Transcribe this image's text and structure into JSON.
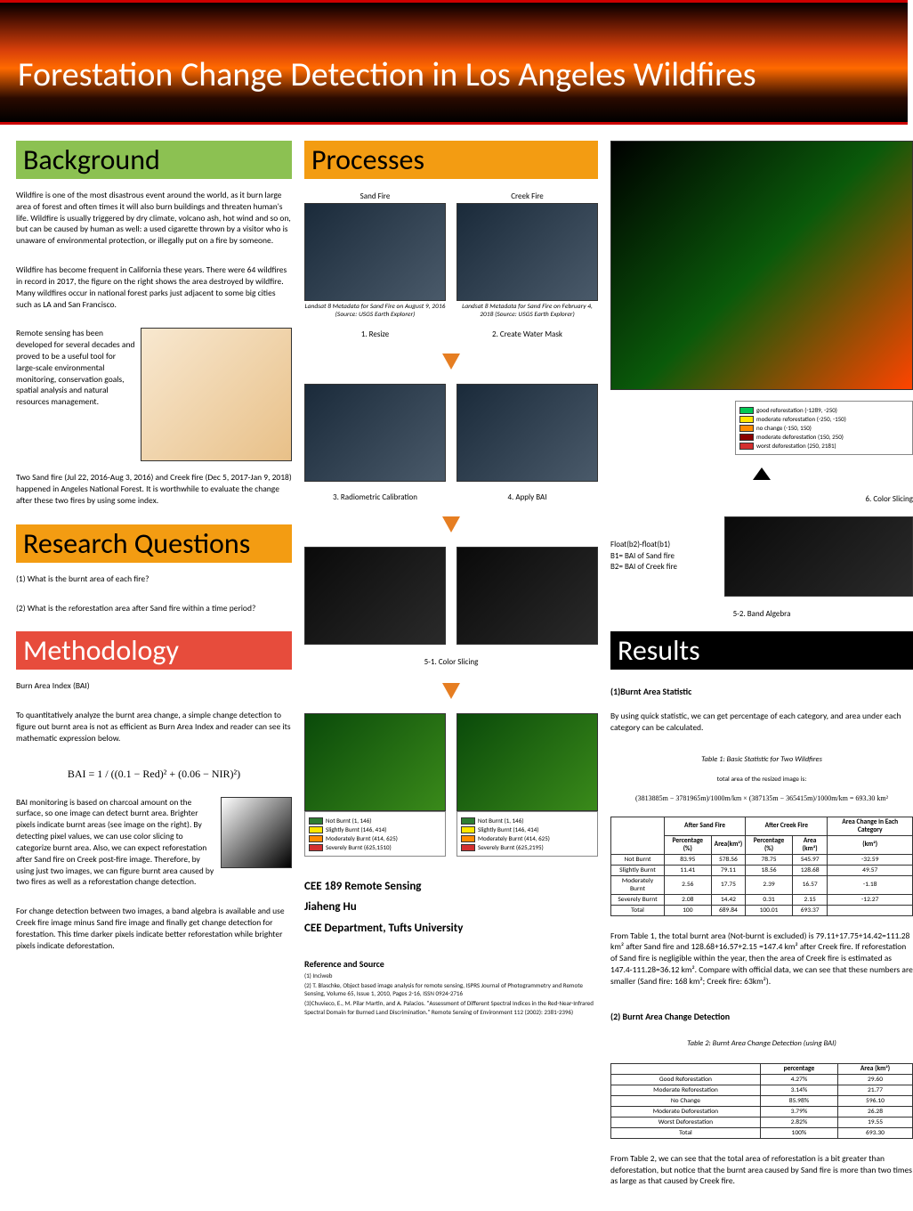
{
  "banner": {
    "title": "Forestation Change Detection in Los Angeles Wildfires"
  },
  "sections": {
    "background": "Background",
    "research_q": "Research Questions",
    "methodology": "Methodology",
    "processes": "Processes",
    "results": "Results"
  },
  "background": {
    "p1": "Wildfire is one of the most disastrous event around the world, as it burn large area of forest and often times it will also burn buildings and threaten human's life. Wildfire is usually triggered by dry climate, volcano ash, hot wind and so on, but can be caused by human as well: a used cigarette thrown by a visitor who is unaware of environmental protection, or illegally put on a fire by someone.",
    "p2": "Wildfire has become frequent in California these years. There were 64 wildfires in record in 2017, the figure on the right shows the area destroyed by wildfire. Many wildfires occur in national forest parks just adjacent to some big cities such as LA and San Francisco.",
    "p3": "Remote sensing has been developed for several decades and proved to be a useful tool for large-scale environmental monitoring, conservation goals, spatial analysis and natural resources management.",
    "p4": "Two Sand fire (Jul 22, 2016-Aug 3, 2016) and Creek fire (Dec 5, 2017-Jan 9, 2018) happened in Angeles National Forest. It is worthwhile to evaluate the change after these two fires by using some index."
  },
  "research_q": {
    "q1": "(1) What is the burnt area of each fire?",
    "q2": "(2) What is the reforestation area after Sand fire within a time period?"
  },
  "methodology": {
    "h1": "Burn Area Index (BAI)",
    "p1": "To quantitatively analyze the burnt area change, a simple change detection to figure out burnt area is not as efficient as Burn Area Index and reader can see its mathematic expression below.",
    "formula": "BAI = 1 / ((0.1 − Red)² + (0.06 − NIR)²)",
    "p2": "BAI monitoring is based on charcoal amount on the surface, so one image can detect burnt area. Brighter pixels indicate burnt areas (see image on the right). By detecting pixel values, we can use color slicing to categorize burnt area. Also, we can expect reforestation after Sand fire on Creek post-fire image. Therefore, by using just two images, we can figure burnt area caused by two fires as well as a reforestation change detection.",
    "p3": "For change detection between two images, a band algebra is available and use Creek fire image minus Sand fire image and finally get change detection for forestation. This time darker pixels indicate better reforestation while brighter pixels indicate deforestation."
  },
  "processes": {
    "sand_label": "Sand Fire",
    "creek_label": "Creek Fire",
    "cap_sand": "Landsat 8 Metadata for Sand Fire on August 9, 2016 (Source: USGS Earth Explorer)",
    "cap_creek": "Landsat 8 Metadata for Sand Fire on February 4, 2018 (Source: USGS Earth Explorer)",
    "step1": "1. Resize",
    "step2": "2. Create Water Mask",
    "step3": "3. Radiometric Calibration",
    "step4": "4. Apply BAI",
    "step5_1": "5-1. Color Slicing",
    "step5_2": "5-2. Band Algebra",
    "step6": "6. Color Slicing",
    "algebra": {
      "l1": "Float(b2)-float(b1)",
      "l2": "B1= BAI of Sand fire",
      "l3": "B2= BAI of Creek fire"
    },
    "legend_burnt": [
      {
        "color": "#2e7d32",
        "label": "Not Burnt (1, 146)"
      },
      {
        "color": "#ffe600",
        "label": "Slightly Burnt (146, 414)"
      },
      {
        "color": "#ff8c00",
        "label": "Moderately Burnt (414, 625)"
      },
      {
        "color": "#d32f2f",
        "label": "Severely Burnt (625,1510)"
      }
    ],
    "legend_burnt2": [
      {
        "color": "#2e7d32",
        "label": "Not Burnt (1, 146)"
      },
      {
        "color": "#ffe600",
        "label": "Slightly Burnt (146, 414)"
      },
      {
        "color": "#ff8c00",
        "label": "Moderately Burnt (414, 625)"
      },
      {
        "color": "#d32f2f",
        "label": "Severely Burnt (625,2195)"
      }
    ],
    "legend_change": [
      {
        "color": "#00c853",
        "label": "good reforestation (-1289, -250)"
      },
      {
        "color": "#ffe600",
        "label": "moderate reforestation (-250, -150)"
      },
      {
        "color": "#ff8c00",
        "label": "no change (-150, 150)"
      },
      {
        "color": "#8b0000",
        "label": "moderate deforestation (150, 250)"
      },
      {
        "color": "#d32f2f",
        "label": "worst deforestation (250, 2181)"
      }
    ]
  },
  "course": {
    "l1": "CEE 189 Remote Sensing",
    "l2": "Jiaheng Hu",
    "l3": "CEE Department, Tufts University"
  },
  "refs": {
    "h": "Reference and Source",
    "r1": "(1) Inciweb",
    "r2": "(2) T. Blaschke, Object based image analysis for remote sensing, ISPRS Journal of Photogrammetry and Remote Sensing, Volume 65, Issue 1, 2010, Pages 2-16, ISSN 0924-2716",
    "r3": "(3)Chuvieco, E., M. Pilar Martin, and A. Palacios. \"Assessment of Different Spectral Indices in the Red-Near-Infrared Spectral Domain for Burned Land Discrimination.\" Remote Sensing of Environment 112 (2002): 2381-2396)"
  },
  "results": {
    "h1": "(1)Burnt Area Statistic",
    "p1": "By using quick statistic, we can get percentage of each category, and area under each category can be calculated.",
    "t1_title": "Table 1: Basic Statistic for Two Wildfires",
    "area_note": "total area of the resized image is:",
    "area_formula": "(3813885m − 3781965m)/1000m/km × (387135m − 365415m)/1000m/km = 693.30 km²",
    "table1": {
      "cols": [
        "",
        "Percentage (%)",
        "Area(km²)",
        "Percentage (%)",
        "Area (km²)",
        "(km²)"
      ],
      "head_groups": [
        "",
        "After Sand Fire",
        "After Creek Fire",
        "Area Change in Each Category"
      ],
      "rows": [
        [
          "Not Burnt",
          "83.95",
          "578.56",
          "78.75",
          "545.97",
          "-32.59"
        ],
        [
          "Slightly Burnt",
          "11.41",
          "79.11",
          "18.56",
          "128.68",
          "49.57"
        ],
        [
          "Moderately Burnt",
          "2.56",
          "17.75",
          "2.39",
          "16.57",
          "-1.18"
        ],
        [
          "Severely Burnt",
          "2.08",
          "14.42",
          "0.31",
          "2.15",
          "-12.27"
        ],
        [
          "Total",
          "100",
          "689.84",
          "100.01",
          "693.37",
          ""
        ]
      ]
    },
    "p2": "From Table 1, the total burnt area (Not-burnt is excluded) is 79.11+17.75+14.42=111.28 km² after Sand fire and 128.68+16.57+2.15 =147.4 km² after Creek fire. If reforestation of Sand fire is negligible within the year, then the area of Creek fire is estimated as 147.4-111.28=36.12 km². Compare with official data, we can see that these numbers are smaller (Sand fire: 168 km²; Creek fire: 63km²).",
    "h2": "(2) Burnt Area Change Detection",
    "t2_title": "Table 2: Burnt Area Change Detection (using BAI)",
    "table2": {
      "cols": [
        "",
        "percentage",
        "Area (km²)"
      ],
      "rows": [
        [
          "Good Reforestation",
          "4.27%",
          "29.60"
        ],
        [
          "Moderate Reforestation",
          "3.14%",
          "21.77"
        ],
        [
          "No Change",
          "85.98%",
          "596.10"
        ],
        [
          "Moderate Deforestation",
          "3.79%",
          "26.28"
        ],
        [
          "Worst Deforestation",
          "2.82%",
          "19.55"
        ],
        [
          "Total",
          "100%",
          "693.30"
        ]
      ]
    },
    "p3": "From Table 2, we can see that the total area of reforestation is a bit greater than deforestation, but notice that the burnt area caused by Sand fire is more than two times as large as that caused by Creek fire."
  }
}
